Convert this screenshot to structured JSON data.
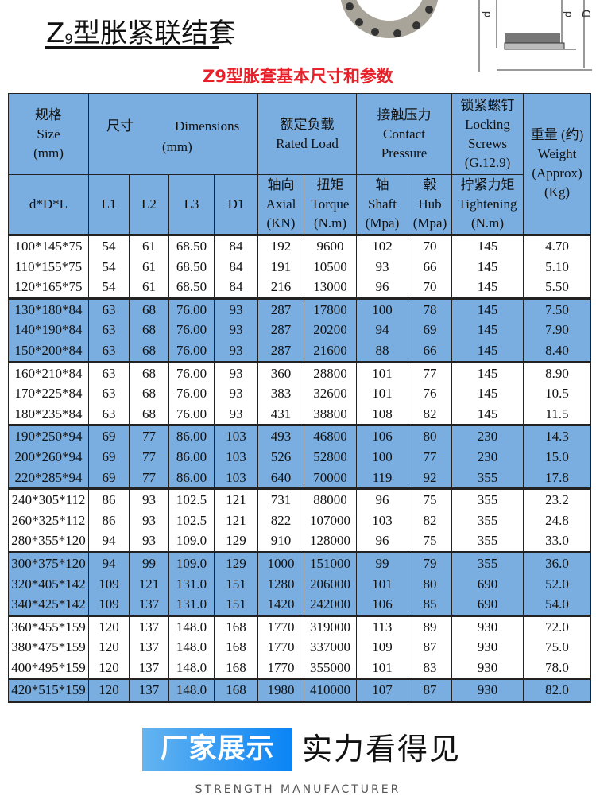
{
  "page": {
    "title_main": "Z",
    "title_sub": "9",
    "title_rest": "型胀紧联结套",
    "subtitle": "Z9型胀套基本尺寸和参数",
    "drawing_labels": [
      "d",
      "d",
      "D"
    ]
  },
  "table": {
    "header": {
      "size_cn": "规格",
      "size_en": "Size",
      "size_unit": "(mm)",
      "dim_cn": "尺寸",
      "dim_en": "Dimensions",
      "dim_unit": "(mm)",
      "load_cn": "额定负载",
      "load_en": "Rated Load",
      "pressure_cn": "接触压力",
      "pressure_en1": "Contact",
      "pressure_en2": "Pressure",
      "screws_cn": "锁紧螺钉",
      "screws_en1": "Locking",
      "screws_en2": "Screws",
      "screws_grade": "(G.12.9)",
      "weight_cn": "重量 (约)",
      "weight_en": "Weight",
      "weight_approx": "(Approx)",
      "weight_unit": "(Kg)",
      "dDL": "d*D*L",
      "L1": "L1",
      "L2": "L2",
      "L3": "L3",
      "D1": "D1",
      "axial_cn": "轴向",
      "axial_en": "Axial",
      "axial_unit": "(KN)",
      "torque_cn": "扭矩",
      "torque_en": "Torque",
      "torque_unit": "(N.m)",
      "shaft_cn": "轴",
      "shaft_en": "Shaft",
      "shaft_unit": "(Mpa)",
      "hub_cn": "毂",
      "hub_en": "Hub",
      "hub_unit": "(Mpa)",
      "tight_cn": "拧紧力矩",
      "tight_en": "Tightening",
      "tight_unit": "(N.m)"
    },
    "groups": [
      {
        "shade": "white",
        "rows": [
          [
            "100*145*75",
            "54",
            "61",
            "68.50",
            "84",
            "192",
            "9600",
            "102",
            "70",
            "145",
            "4.70"
          ],
          [
            "110*155*75",
            "54",
            "61",
            "68.50",
            "84",
            "191",
            "10500",
            "93",
            "66",
            "145",
            "5.10"
          ],
          [
            "120*165*75",
            "54",
            "61",
            "68.50",
            "84",
            "216",
            "13000",
            "96",
            "70",
            "145",
            "5.50"
          ]
        ]
      },
      {
        "shade": "blue",
        "rows": [
          [
            "130*180*84",
            "63",
            "68",
            "76.00",
            "93",
            "287",
            "17800",
            "100",
            "78",
            "145",
            "7.50"
          ],
          [
            "140*190*84",
            "63",
            "68",
            "76.00",
            "93",
            "287",
            "20200",
            "94",
            "69",
            "145",
            "7.90"
          ],
          [
            "150*200*84",
            "63",
            "68",
            "76.00",
            "93",
            "287",
            "21600",
            "88",
            "66",
            "145",
            "8.40"
          ]
        ]
      },
      {
        "shade": "white",
        "rows": [
          [
            "160*210*84",
            "63",
            "68",
            "76.00",
            "93",
            "360",
            "28800",
            "101",
            "77",
            "145",
            "8.90"
          ],
          [
            "170*225*84",
            "63",
            "68",
            "76.00",
            "93",
            "383",
            "32600",
            "101",
            "76",
            "145",
            "10.5"
          ],
          [
            "180*235*84",
            "63",
            "68",
            "76.00",
            "93",
            "431",
            "38800",
            "108",
            "82",
            "145",
            "11.5"
          ]
        ]
      },
      {
        "shade": "blue",
        "rows": [
          [
            "190*250*94",
            "69",
            "77",
            "86.00",
            "103",
            "493",
            "46800",
            "106",
            "80",
            "230",
            "14.3"
          ],
          [
            "200*260*94",
            "69",
            "77",
            "86.00",
            "103",
            "526",
            "52800",
            "100",
            "77",
            "230",
            "15.0"
          ],
          [
            "220*285*94",
            "69",
            "77",
            "86.00",
            "103",
            "640",
            "70000",
            "119",
            "92",
            "355",
            "17.8"
          ]
        ]
      },
      {
        "shade": "white",
        "rows": [
          [
            "240*305*112",
            "86",
            "93",
            "102.5",
            "121",
            "731",
            "88000",
            "96",
            "75",
            "355",
            "23.2"
          ],
          [
            "260*325*112",
            "86",
            "93",
            "102.5",
            "121",
            "822",
            "107000",
            "103",
            "82",
            "355",
            "24.8"
          ],
          [
            "280*355*120",
            "94",
            "93",
            "109.0",
            "129",
            "910",
            "128000",
            "96",
            "75",
            "355",
            "33.0"
          ]
        ]
      },
      {
        "shade": "blue",
        "rows": [
          [
            "300*375*120",
            "94",
            "99",
            "109.0",
            "129",
            "1000",
            "151000",
            "99",
            "79",
            "355",
            "36.0"
          ],
          [
            "320*405*142",
            "109",
            "121",
            "131.0",
            "151",
            "1280",
            "206000",
            "101",
            "80",
            "690",
            "52.0"
          ],
          [
            "340*425*142",
            "109",
            "137",
            "131.0",
            "151",
            "1420",
            "242000",
            "106",
            "85",
            "690",
            "54.0"
          ]
        ]
      },
      {
        "shade": "white",
        "rows": [
          [
            "360*455*159",
            "120",
            "137",
            "148.0",
            "168",
            "1770",
            "319000",
            "113",
            "89",
            "930",
            "72.0"
          ],
          [
            "380*475*159",
            "120",
            "137",
            "148.0",
            "168",
            "1770",
            "337000",
            "109",
            "87",
            "930",
            "75.0"
          ],
          [
            "400*495*159",
            "120",
            "137",
            "148.0",
            "168",
            "1770",
            "355000",
            "101",
            "83",
            "930",
            "78.0"
          ]
        ]
      },
      {
        "shade": "blue",
        "rows": [
          [
            "420*515*159",
            "120",
            "137",
            "148.0",
            "168",
            "1980",
            "410000",
            "107",
            "87",
            "930",
            "82.0"
          ]
        ]
      }
    ],
    "column_keys": [
      "size",
      "l1",
      "l2",
      "l3",
      "d1",
      "axial",
      "torque",
      "shaft",
      "hub",
      "tightening",
      "weight"
    ]
  },
  "banner": {
    "highlight": "厂家展示",
    "text": "实力看得见",
    "sub": "STRENGTH MANUFACTURER"
  },
  "colors": {
    "header_blue": "#7aaee0",
    "subtitle_red": "#e8202a",
    "banner_blue": "#0a84f5"
  }
}
